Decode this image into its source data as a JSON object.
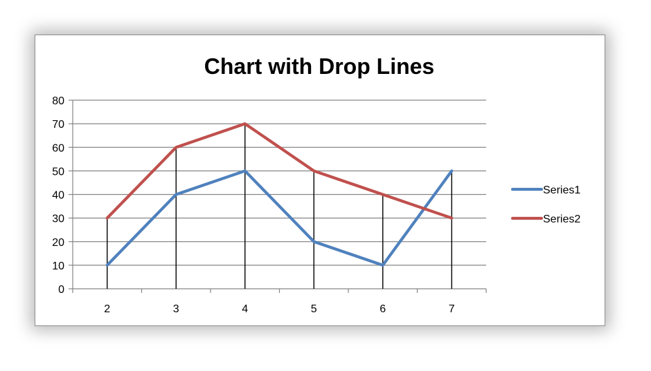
{
  "chart_data": {
    "type": "line",
    "title": "Chart with Drop Lines",
    "xlabel": "",
    "ylabel": "",
    "categories": [
      "2",
      "3",
      "4",
      "5",
      "6",
      "7"
    ],
    "ylim": [
      0,
      80
    ],
    "y_ticks": [
      "0",
      "10",
      "20",
      "30",
      "40",
      "50",
      "60",
      "70",
      "80"
    ],
    "grid": true,
    "drop_lines": true,
    "legend_position": "right",
    "series": [
      {
        "name": "Series1",
        "values": [
          10,
          40,
          50,
          20,
          10,
          50
        ],
        "color": "#4F81BD"
      },
      {
        "name": "Series2",
        "values": [
          30,
          60,
          70,
          50,
          40,
          30
        ],
        "color": "#C0504D"
      }
    ]
  }
}
